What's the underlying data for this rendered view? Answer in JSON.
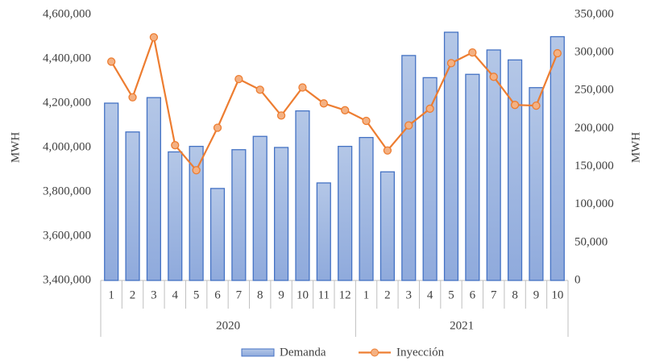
{
  "chart_data": {
    "type": "bar-line",
    "groups": [
      {
        "label": "2020",
        "categories": [
          "1",
          "2",
          "3",
          "4",
          "5",
          "6",
          "7",
          "8",
          "9",
          "10",
          "11",
          "12"
        ]
      },
      {
        "label": "2021",
        "categories": [
          "1",
          "2",
          "3",
          "4",
          "5",
          "6",
          "7",
          "8",
          "9",
          "10"
        ]
      }
    ],
    "series": [
      {
        "name": "Demanda",
        "type": "bar",
        "axis": "y",
        "color": "#8faadc",
        "edge": "#4472c4",
        "values": [
          4200000,
          4070000,
          4225000,
          3980000,
          4005000,
          3815000,
          3990000,
          4050000,
          4000000,
          4165000,
          3840000,
          4005000,
          4045000,
          3890000,
          4415000,
          4315000,
          4520000,
          4330000,
          4440000,
          4395000,
          4270000,
          4500000
        ]
      },
      {
        "name": "Inyección",
        "type": "line",
        "axis": "y2",
        "color": "#ed7d31",
        "marker_fill": "#f4b183",
        "values": [
          288000,
          241000,
          320000,
          178000,
          145000,
          201000,
          265000,
          251000,
          217000,
          254000,
          233000,
          224000,
          210000,
          171000,
          204000,
          226000,
          286000,
          300000,
          268000,
          231000,
          230000,
          299000
        ]
      }
    ],
    "ylabel": "MWH",
    "y2label": "MWH",
    "ylim": [
      3400000,
      4600000
    ],
    "yticks": [
      {
        "value": 3400000,
        "label": "3,400,000"
      },
      {
        "value": 3600000,
        "label": "3,600,000"
      },
      {
        "value": 3800000,
        "label": "3,800,000"
      },
      {
        "value": 4000000,
        "label": "4,000,000"
      },
      {
        "value": 4200000,
        "label": "4,200,000"
      },
      {
        "value": 4400000,
        "label": "4,400,000"
      },
      {
        "value": 4600000,
        "label": "4,600,000"
      }
    ],
    "y2lim": [
      0,
      350000
    ],
    "y2ticks": [
      0,
      {
        "value": 50000,
        "label": "50,000"
      },
      {
        "value": 100000,
        "label": "100,000"
      },
      {
        "value": 150000,
        "label": "150,000"
      },
      {
        "value": 200000,
        "label": "200,000"
      },
      {
        "value": 250000,
        "label": "250,000"
      },
      {
        "value": 300000,
        "label": "300,000"
      },
      {
        "value": 350000,
        "label": "350,000"
      }
    ],
    "legend": "bottom"
  }
}
